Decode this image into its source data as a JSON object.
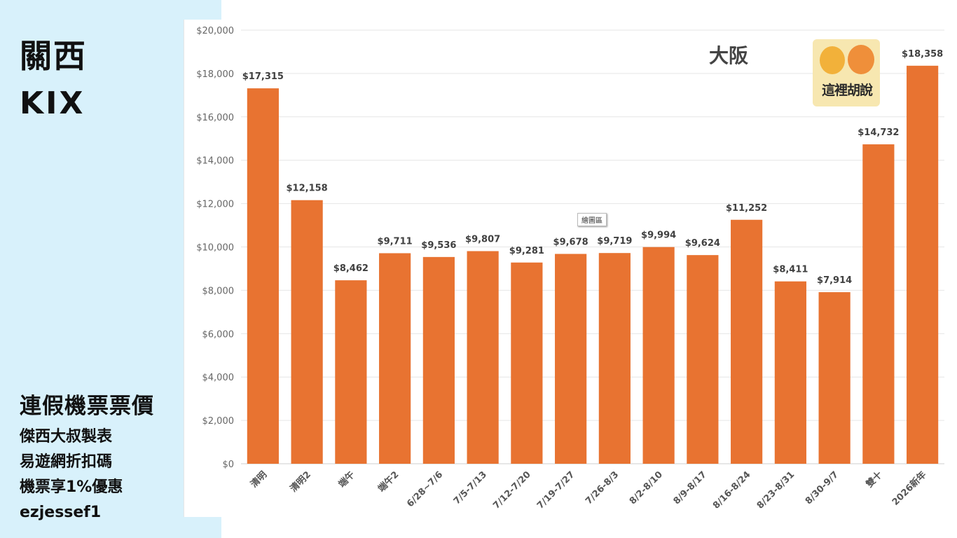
{
  "panel": {
    "title": "關西",
    "code": "KIX",
    "subtitle": "連假機票票價",
    "lines": [
      "傑西大叔製表",
      "易遊網折扣碼",
      "機票享1%優惠",
      "ezjessef1"
    ]
  },
  "watermark": {
    "text": "這裡胡說"
  },
  "tooltip": "繪圖區",
  "colors": {
    "bar": "#e87331",
    "grid": "#e6e6e6",
    "panel": "#d8f1fb"
  },
  "chart_data": {
    "type": "bar",
    "title": "大阪",
    "xlabel": "",
    "ylabel": "",
    "ylim": [
      0,
      20000
    ],
    "yticks": [
      "$0",
      "$2,000",
      "$4,000",
      "$6,000",
      "$8,000",
      "$10,000",
      "$12,000",
      "$14,000",
      "$16,000",
      "$18,000",
      "$20,000"
    ],
    "categories": [
      "清明",
      "清明2",
      "端午",
      "端午2",
      "6/28~7/6",
      "7/5-7/13",
      "7/12-7/20",
      "7/19-7/27",
      "7/26-8/3",
      "8/2-8/10",
      "8/9-8/17",
      "8/16-8/24",
      "8/23-8/31",
      "8/30-9/7",
      "雙十",
      "2026新年"
    ],
    "values": [
      17315,
      12158,
      8462,
      9711,
      9536,
      9807,
      9281,
      9678,
      9719,
      9994,
      9624,
      11252,
      8411,
      7914,
      14732,
      18358
    ],
    "labels": [
      "$17,315",
      "$12,158",
      "$8,462",
      "$9,711",
      "$9,536",
      "$9,807",
      "$9,281",
      "$9,678",
      "$9,719",
      "$9,994",
      "$9,624",
      "$11,252",
      "$8,411",
      "$7,914",
      "$14,732",
      "$18,358"
    ],
    "grid": true,
    "legend": "none"
  }
}
